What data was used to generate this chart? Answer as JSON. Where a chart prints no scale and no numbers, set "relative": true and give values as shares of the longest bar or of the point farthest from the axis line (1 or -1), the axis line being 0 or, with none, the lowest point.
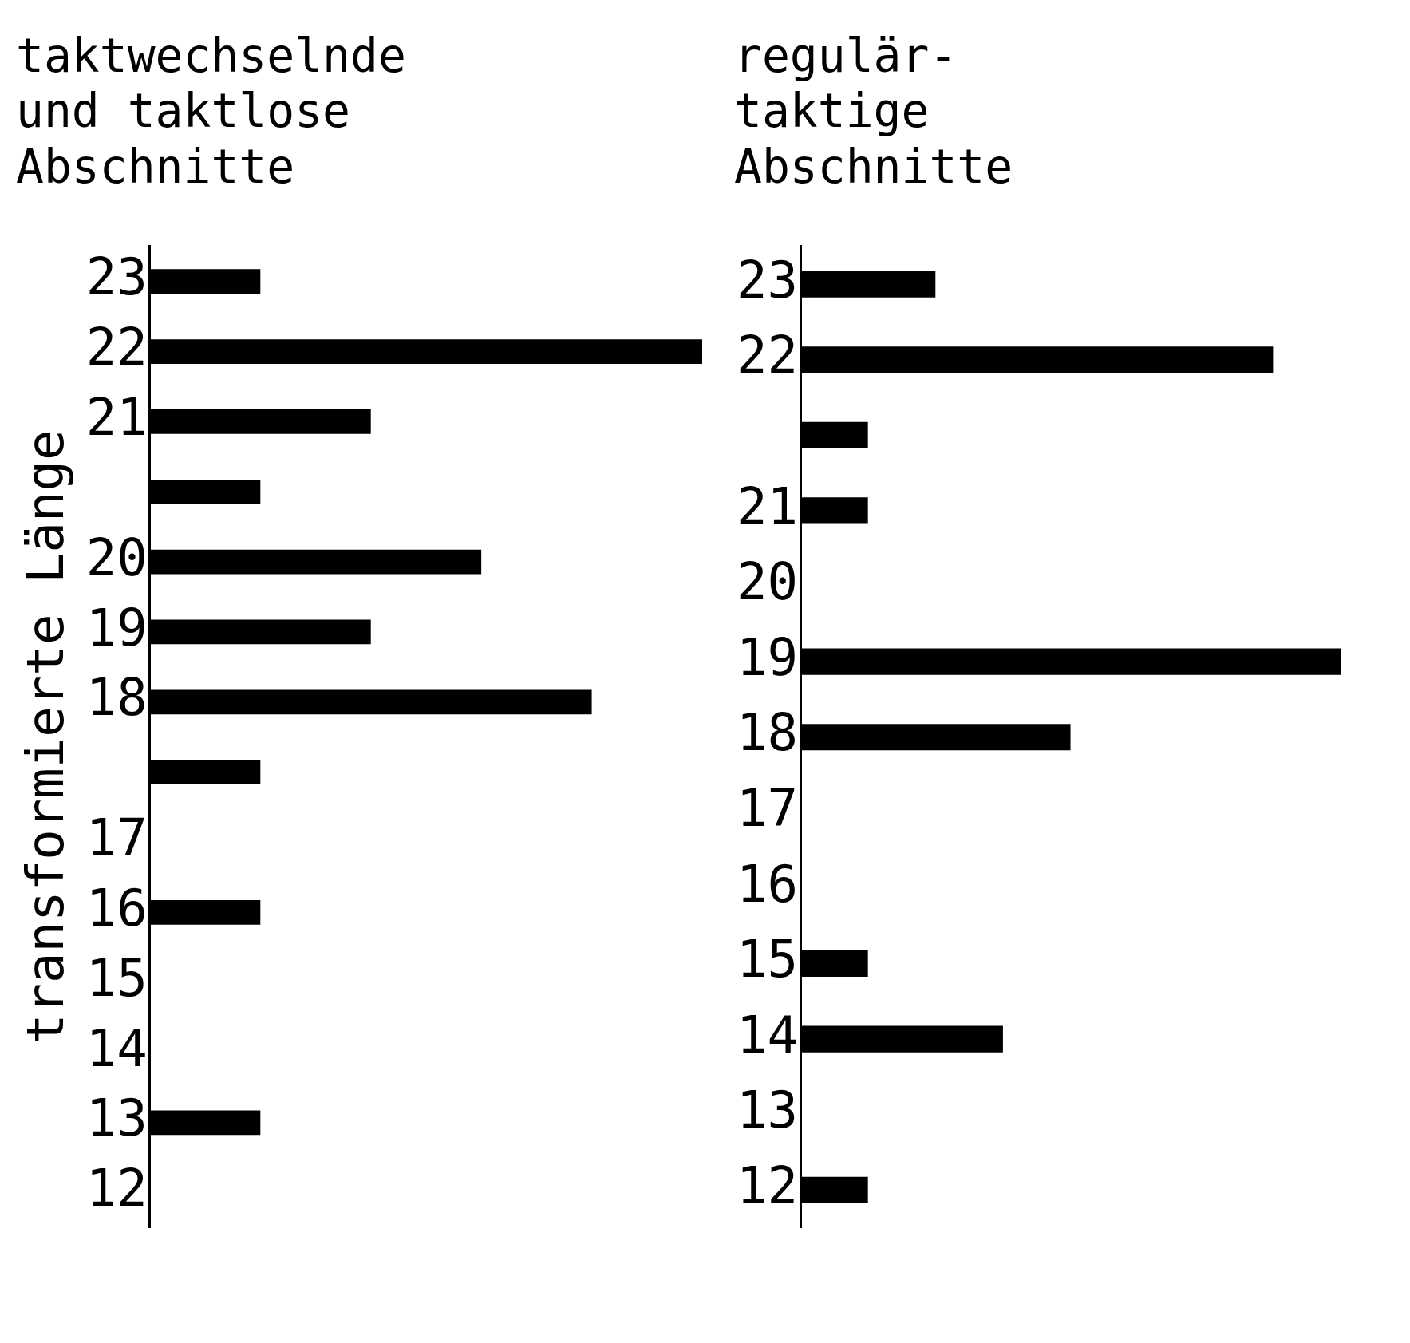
{
  "chart_data": [
    {
      "type": "bar",
      "orientation": "horizontal",
      "relative": true,
      "title": "taktwechselnde\nund taktlose\nAbschnitte",
      "ylabel": "transformierte Länge",
      "grid": false,
      "legend": false,
      "categories": [
        "23",
        "22",
        "21",
        null,
        "20",
        "19",
        "18",
        null,
        "17",
        "16",
        "15",
        "14",
        "13",
        "12"
      ],
      "values": [
        0.2,
        1,
        0.4,
        0.2,
        0.6,
        0.4,
        0.8,
        0.2,
        0,
        0.2,
        0,
        0,
        0.2,
        0
      ],
      "color": "#000000"
    },
    {
      "type": "bar",
      "orientation": "horizontal",
      "relative": true,
      "title": "regulär-\ntaktige\nAbschnitte",
      "grid": false,
      "legend": false,
      "categories": [
        "23",
        "22",
        null,
        "21",
        "20",
        "19",
        "18",
        "17",
        "16",
        "15",
        "14",
        "13",
        "12"
      ],
      "values": [
        0.25,
        0.875,
        0.125,
        0.125,
        0,
        1,
        0.5,
        0,
        0,
        0.125,
        0.375,
        0,
        0.125
      ],
      "color": "#000000"
    }
  ]
}
